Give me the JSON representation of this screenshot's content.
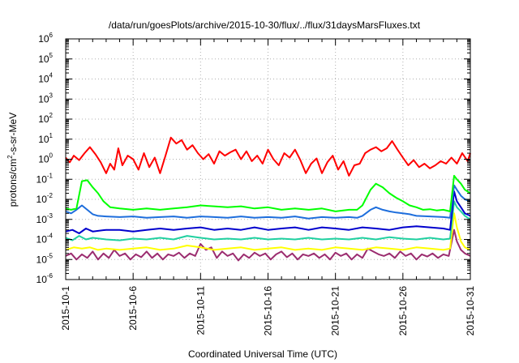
{
  "chart_data": {
    "type": "line",
    "title": "/data/run/goesPlots/archive/2015-10-30/flux/../flux/31daysMarsFluxes.txt",
    "xlabel": "Coordinated Universal Time (UTC)",
    "ylabel": "protons/cm²-s-sr-MeV",
    "ylabel_parts": {
      "pre": "protons/cm",
      "sup": "2",
      "post": "-s-sr-MeV"
    },
    "yscale": "log",
    "xlim": [
      0,
      30
    ],
    "ylim_exponents": [
      -6,
      6
    ],
    "y_tick_base": "10",
    "y_tick_exponents": [
      "-6",
      "-5",
      "-4",
      "-3",
      "-2",
      "-1",
      "0",
      "1",
      "2",
      "3",
      "4",
      "5",
      "6"
    ],
    "x_tick_labels": [
      "2015-10-1",
      "2015-10-6",
      "2015-10-11",
      "2015-10-16",
      "2015-10-21",
      "2015-10-26",
      "2015-10-31"
    ],
    "x_tick_days": [
      0,
      5,
      10,
      15,
      20,
      25,
      30
    ],
    "grid": true,
    "series": [
      {
        "color": "#ff0000",
        "x": [
          0,
          0.3,
          0.6,
          1,
          1.4,
          1.8,
          2.2,
          2.6,
          3,
          3.3,
          3.6,
          3.9,
          4.2,
          4.6,
          5,
          5.4,
          5.8,
          6.2,
          6.6,
          7,
          7.4,
          7.8,
          8.2,
          8.6,
          9,
          9.4,
          9.8,
          10.2,
          10.6,
          11,
          11.4,
          11.8,
          12.2,
          12.6,
          13,
          13.4,
          13.8,
          14.2,
          14.6,
          15,
          15.4,
          15.8,
          16.2,
          16.6,
          17,
          17.4,
          17.8,
          18.2,
          18.6,
          19,
          19.4,
          19.8,
          20.2,
          20.6,
          21,
          21.4,
          21.8,
          22.2,
          22.6,
          23,
          23.4,
          23.8,
          24.2,
          24.6,
          25,
          25.4,
          25.8,
          26.2,
          26.6,
          27,
          27.4,
          27.8,
          28.2,
          28.6,
          29,
          29.4,
          29.8,
          30
        ],
        "y": [
          1.2,
          0.7,
          1.5,
          0.9,
          2,
          4,
          1.8,
          0.7,
          0.2,
          0.6,
          0.3,
          3.5,
          0.5,
          1.5,
          1,
          0.3,
          2,
          0.4,
          1.2,
          0.2,
          1.5,
          12,
          6,
          9,
          3,
          5,
          2,
          1,
          1.8,
          0.6,
          2.5,
          1.5,
          2.2,
          3,
          1,
          2.5,
          0.8,
          1.5,
          0.6,
          3,
          1,
          0.5,
          2,
          1.2,
          3,
          0.9,
          0.2,
          0.6,
          1.1,
          0.2,
          0.7,
          1.5,
          0.3,
          0.8,
          0.15,
          0.5,
          0.6,
          2,
          3,
          4,
          2.5,
          3.5,
          8,
          3,
          1.2,
          0.5,
          0.9,
          0.4,
          0.6,
          0.35,
          0.5,
          0.8,
          0.6,
          1.2,
          0.6,
          2,
          0.8,
          2
        ]
      },
      {
        "color": "#00ff00",
        "x": [
          0,
          0.4,
          0.8,
          1.2,
          1.6,
          2,
          2.4,
          2.8,
          3.3,
          4,
          5,
          6,
          7,
          8,
          9,
          10,
          11,
          12,
          13,
          14,
          15,
          16,
          17,
          18,
          19,
          20,
          21,
          21.6,
          22,
          22.6,
          23,
          23.5,
          24,
          24.5,
          25,
          25.5,
          26,
          26.5,
          27,
          27.5,
          28,
          28.5,
          28.8,
          29,
          29.3,
          29.6,
          30
        ],
        "y": [
          0.0035,
          0.003,
          0.0035,
          0.08,
          0.09,
          0.04,
          0.02,
          0.008,
          0.004,
          0.0035,
          0.003,
          0.0035,
          0.003,
          0.0035,
          0.004,
          0.005,
          0.0045,
          0.004,
          0.0045,
          0.0035,
          0.004,
          0.003,
          0.0035,
          0.003,
          0.0035,
          0.0025,
          0.003,
          0.003,
          0.005,
          0.03,
          0.06,
          0.04,
          0.02,
          0.012,
          0.008,
          0.005,
          0.004,
          0.003,
          0.0032,
          0.0028,
          0.003,
          0.0025,
          0.15,
          0.1,
          0.06,
          0.03,
          0.02
        ]
      },
      {
        "color": "#1e6edc",
        "x": [
          0,
          0.4,
          0.8,
          1.2,
          1.6,
          2,
          2.4,
          3,
          4,
          5,
          6,
          7,
          8,
          9,
          10,
          11,
          12,
          13,
          14,
          15,
          16,
          17,
          18,
          19,
          20,
          21,
          21.6,
          22,
          22.6,
          23,
          23.5,
          24,
          24.5,
          25,
          25.5,
          26,
          27,
          28,
          28.5,
          28.8,
          29,
          29.3,
          29.6,
          30
        ],
        "y": [
          0.0025,
          0.002,
          0.003,
          0.005,
          0.003,
          0.0018,
          0.0015,
          0.0014,
          0.0013,
          0.0014,
          0.0012,
          0.0013,
          0.0014,
          0.0012,
          0.0014,
          0.0013,
          0.0012,
          0.0014,
          0.0012,
          0.0013,
          0.0012,
          0.0014,
          0.0011,
          0.0013,
          0.0012,
          0.0013,
          0.0012,
          0.0015,
          0.003,
          0.004,
          0.003,
          0.0025,
          0.0022,
          0.002,
          0.0018,
          0.0015,
          0.0014,
          0.0013,
          0.0012,
          0.05,
          0.03,
          0.015,
          0.01,
          0.008
        ]
      },
      {
        "color": "#0000cd",
        "x": [
          0,
          0.5,
          1,
          1.5,
          2,
          3,
          4,
          5,
          6,
          7,
          8,
          9,
          10,
          11,
          12,
          13,
          14,
          15,
          16,
          17,
          18,
          19,
          20,
          21,
          22,
          23,
          24,
          25,
          26,
          27,
          28,
          28.5,
          28.8,
          29,
          29.3,
          29.6,
          30
        ],
        "y": [
          0.00025,
          0.0003,
          0.0002,
          0.00035,
          0.00025,
          0.0003,
          0.0003,
          0.00025,
          0.0003,
          0.00035,
          0.0003,
          0.00035,
          0.0004,
          0.0003,
          0.00035,
          0.0003,
          0.0004,
          0.0003,
          0.00035,
          0.0004,
          0.0003,
          0.0004,
          0.00035,
          0.0003,
          0.0004,
          0.00035,
          0.0003,
          0.0004,
          0.00045,
          0.0004,
          0.00035,
          0.0003,
          0.025,
          0.008,
          0.004,
          0.002,
          0.0015
        ]
      },
      {
        "color": "#20d0a0",
        "x": [
          0,
          0.5,
          1,
          1.5,
          2,
          3,
          4,
          5,
          6,
          7,
          8,
          9,
          10,
          11,
          12,
          13,
          14,
          15,
          16,
          17,
          18,
          19,
          20,
          21,
          22,
          23,
          24,
          25,
          26,
          27,
          28,
          28.5,
          28.8,
          29,
          29.3,
          29.6,
          30
        ],
        "y": [
          0.00012,
          9e-05,
          0.00015,
          0.0001,
          0.00012,
          0.0001,
          9e-05,
          0.00011,
          0.0001,
          0.00012,
          0.0001,
          0.00015,
          0.00012,
          0.0001,
          0.00011,
          0.0001,
          0.00012,
          0.0001,
          0.00011,
          0.0001,
          0.00012,
          0.0001,
          0.00011,
          0.0001,
          0.00012,
          0.0001,
          0.00013,
          0.00011,
          0.0001,
          0.00012,
          0.0001,
          0.00011,
          0.008,
          0.004,
          0.0025,
          0.0015,
          0.001
        ]
      },
      {
        "color": "#ffff00",
        "x": [
          0,
          0.6,
          1.2,
          1.8,
          2.4,
          3,
          4,
          5,
          6,
          7,
          8,
          9,
          10,
          11,
          12,
          13,
          14,
          15,
          16,
          17,
          18,
          19,
          20,
          21,
          22,
          23,
          24,
          25,
          26,
          27,
          28,
          28.5,
          28.8,
          29,
          29.3,
          29.6,
          30
        ],
        "y": [
          3e-05,
          4e-05,
          3.5e-05,
          4e-05,
          3e-05,
          3.5e-05,
          3e-05,
          3.5e-05,
          4e-05,
          3e-05,
          3.5e-05,
          5e-05,
          4e-05,
          3e-05,
          3.5e-05,
          4e-05,
          3e-05,
          3.5e-05,
          4e-05,
          3e-05,
          3.5e-05,
          3e-05,
          4e-05,
          3.5e-05,
          3e-05,
          4e-05,
          3.5e-05,
          3e-05,
          4e-05,
          3.5e-05,
          3e-05,
          3.5e-05,
          0.002,
          0.0004,
          8e-05,
          4e-05,
          3e-05
        ]
      },
      {
        "color": "#9b2c6f",
        "x": [
          0,
          0.4,
          0.8,
          1.2,
          1.6,
          2,
          2.4,
          2.8,
          3.2,
          3.6,
          4,
          4.4,
          4.8,
          5.2,
          5.6,
          6,
          6.4,
          6.8,
          7.2,
          7.6,
          8,
          8.4,
          8.8,
          9.2,
          9.6,
          10,
          10.4,
          10.8,
          11.2,
          11.6,
          12,
          12.4,
          12.8,
          13.2,
          13.6,
          14,
          14.4,
          14.8,
          15.2,
          15.6,
          16,
          16.4,
          16.8,
          17.2,
          17.6,
          18,
          18.4,
          18.8,
          19.2,
          19.6,
          20,
          20.4,
          20.8,
          21.2,
          21.6,
          22,
          22.4,
          22.8,
          23.2,
          23.6,
          24,
          24.4,
          24.8,
          25.2,
          25.6,
          26,
          26.4,
          26.8,
          27.2,
          27.6,
          28,
          28.4,
          28.8,
          29,
          29.3,
          29.6,
          30
        ],
        "y": [
          1.5e-05,
          2e-05,
          1e-05,
          1.8e-05,
          1.2e-05,
          2.5e-05,
          1e-05,
          2e-05,
          1.2e-05,
          3e-05,
          1.5e-05,
          2e-05,
          1e-05,
          1.8e-05,
          1.3e-05,
          2.5e-05,
          1.2e-05,
          2e-05,
          1e-05,
          1.8e-05,
          1.5e-05,
          2.2e-05,
          1.2e-05,
          2e-05,
          1.5e-05,
          6e-05,
          3e-05,
          4e-05,
          1.2e-05,
          2.5e-05,
          1.5e-05,
          2e-05,
          9e-06,
          1.8e-05,
          1.2e-05,
          2.2e-05,
          1.5e-05,
          2e-05,
          1e-05,
          1.8e-05,
          2.5e-05,
          1.3e-05,
          2e-05,
          1e-05,
          1.8e-05,
          1.5e-05,
          2e-05,
          1.2e-05,
          1.8e-05,
          1e-05,
          2.2e-05,
          1.5e-05,
          2e-05,
          1e-05,
          1.8e-05,
          1.2e-05,
          3.5e-05,
          2.5e-05,
          1.8e-05,
          1.5e-05,
          2e-05,
          1.2e-05,
          2.5e-05,
          1.5e-05,
          2e-05,
          1e-05,
          1.8e-05,
          1.4e-05,
          2e-05,
          1.2e-05,
          1.8e-05,
          1.5e-05,
          0.0003,
          8e-05,
          3e-05,
          2e-05,
          1.5e-05
        ]
      }
    ]
  }
}
